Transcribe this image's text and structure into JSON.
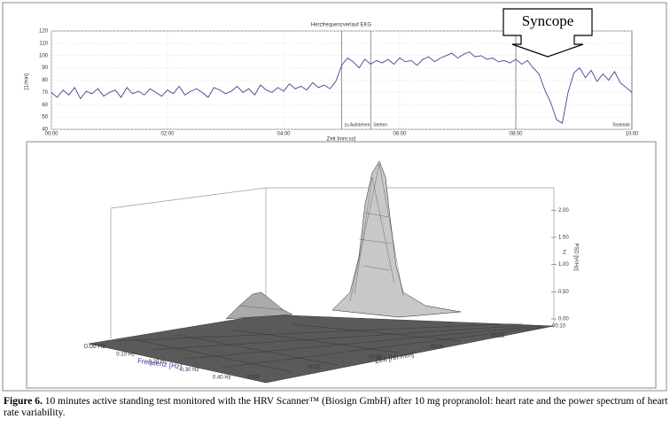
{
  "chart_data": {
    "type": "line",
    "title": "Herzfrequenzverlauf EKG",
    "y_label": "[1/min]",
    "x_label": "Zeit [mm:ss]",
    "xlim": [
      0,
      600
    ],
    "ylim": [
      40,
      120
    ],
    "xticks": [
      {
        "value": 0,
        "label": "00:00"
      },
      {
        "value": 120,
        "label": "02:00"
      },
      {
        "value": 240,
        "label": "04:00"
      },
      {
        "value": 360,
        "label": "06:00"
      },
      {
        "value": 480,
        "label": "08:00"
      },
      {
        "value": 600,
        "label": "10:00"
      }
    ],
    "yticks": [
      40,
      50,
      60,
      70,
      80,
      90,
      100,
      110,
      120
    ],
    "grid": true,
    "x": [
      0,
      6,
      12,
      18,
      24,
      30,
      36,
      42,
      48,
      54,
      60,
      66,
      72,
      78,
      84,
      90,
      96,
      102,
      108,
      114,
      120,
      126,
      132,
      138,
      144,
      150,
      156,
      162,
      168,
      174,
      180,
      186,
      192,
      198,
      204,
      210,
      216,
      222,
      228,
      234,
      240,
      246,
      252,
      258,
      264,
      270,
      276,
      282,
      288,
      294,
      300,
      306,
      312,
      318,
      324,
      330,
      336,
      342,
      348,
      354,
      360,
      366,
      372,
      378,
      384,
      390,
      396,
      402,
      408,
      414,
      420,
      426,
      432,
      438,
      444,
      450,
      456,
      462,
      468,
      474,
      480,
      486,
      492,
      498,
      504,
      510,
      516,
      522,
      528,
      534,
      540,
      546,
      552,
      558,
      564,
      570,
      576,
      582,
      588,
      594,
      600
    ],
    "series": [
      {
        "name": "Herzfrequenz",
        "color": "#4a3f9a",
        "values": [
          70,
          66,
          72,
          68,
          74,
          65,
          71,
          69,
          73,
          67,
          70,
          72,
          66,
          74,
          69,
          71,
          68,
          73,
          70,
          67,
          72,
          69,
          75,
          68,
          71,
          73,
          70,
          66,
          74,
          72,
          69,
          71,
          75,
          70,
          73,
          68,
          76,
          72,
          70,
          74,
          71,
          77,
          73,
          75,
          72,
          78,
          74,
          76,
          73,
          79,
          92,
          98,
          95,
          90,
          97,
          93,
          96,
          94,
          97,
          93,
          98,
          95,
          96,
          92,
          97,
          99,
          95,
          98,
          100,
          102,
          98,
          101,
          103,
          99,
          100,
          97,
          98,
          95,
          96,
          94,
          97,
          93,
          96,
          90,
          85,
          72,
          62,
          48,
          45,
          70,
          86,
          90,
          82,
          88,
          79,
          85,
          80,
          87,
          78,
          74,
          70
        ]
      }
    ],
    "markers": [
      {
        "x": 300,
        "label": "zu Aufstehen"
      },
      {
        "x": 330,
        "label": "Stehen"
      },
      {
        "x": 480
      },
      {
        "x": 600,
        "label": "Testende"
      }
    ],
    "annotation": "Syncope"
  },
  "spectrum": {
    "z_label": "Z",
    "psd_label": "PSD [s²/Hz]",
    "zlim": [
      0,
      2.2
    ],
    "zticks": [
      {
        "value": 0,
        "label": "0.00"
      },
      {
        "value": 0.5,
        "label": "0.50"
      },
      {
        "value": 1,
        "label": "1.00"
      },
      {
        "value": 1.5,
        "label": "1.50"
      },
      {
        "value": 2,
        "label": "2.00"
      }
    ],
    "freq_label": "Frequenz [Hz]",
    "freq_ticks": [
      "0.00 Hz",
      "0.10 Hz",
      "0.20 Hz",
      "0.30 Hz",
      "0.40 Hz"
    ],
    "time_label": "Zeit [hh:mm]",
    "time_ticks": [
      "00:00",
      "00:02",
      "00:04",
      "00:06",
      "00:08",
      "00:10"
    ]
  },
  "caption": {
    "label": "Figure 6.",
    "text": "10 minutes active standing test monitored with the HRV Scanner™ (Biosign GmbH) after 10 mg propranolol: heart rate and the power spectrum of heart rate variability."
  }
}
